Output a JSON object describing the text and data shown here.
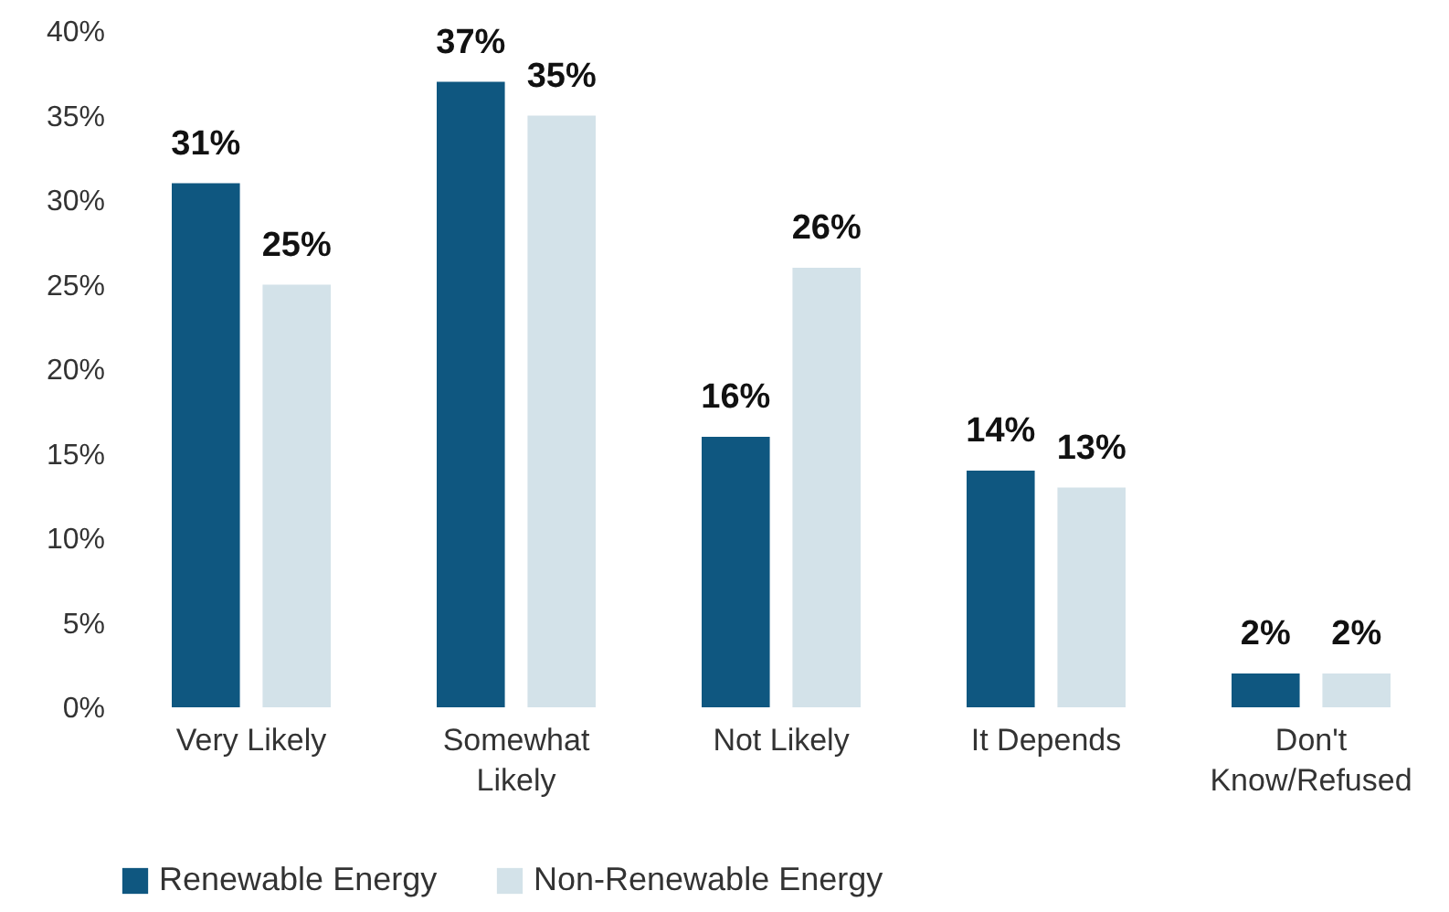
{
  "chart_data": {
    "type": "bar",
    "categories": [
      "Very Likely",
      "Somewhat Likely",
      "Not Likely",
      "It Depends",
      "Don't Know/Refused"
    ],
    "series": [
      {
        "name": "Renewable Energy",
        "color": "#0f5780",
        "values": [
          31,
          37,
          16,
          14,
          2
        ],
        "value_labels": [
          "31%",
          "37%",
          "16%",
          "14%",
          "2%"
        ]
      },
      {
        "name": "Non-Renewable Energy",
        "color": "#d3e2e9",
        "values": [
          25,
          35,
          26,
          13,
          2
        ],
        "value_labels": [
          "25%",
          "35%",
          "26%",
          "13%",
          "2%"
        ]
      }
    ],
    "ylim": [
      0,
      40
    ],
    "yticks": [
      {
        "value": 0,
        "label": "0%"
      },
      {
        "value": 5,
        "label": "5%"
      },
      {
        "value": 10,
        "label": "10%"
      },
      {
        "value": 15,
        "label": "15%"
      },
      {
        "value": 20,
        "label": "20%"
      },
      {
        "value": 25,
        "label": "25%"
      },
      {
        "value": 30,
        "label": "30%"
      },
      {
        "value": 35,
        "label": "35%"
      },
      {
        "value": 40,
        "label": "40%"
      }
    ],
    "grid": false,
    "legend": "bottom"
  }
}
